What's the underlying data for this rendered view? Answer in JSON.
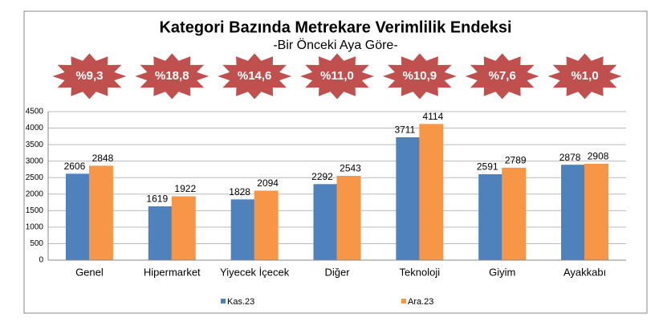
{
  "chart_data": {
    "type": "bar",
    "title": "Kategori Bazında Metrekare Verimlilik Endeksi",
    "subtitle": "-Bir Önceki Aya Göre-",
    "change_labels": [
      "%9,3",
      "%18,8",
      "%14,6",
      "%11,0",
      "%10,9",
      "%7,6",
      "%1,0"
    ],
    "categories": [
      "Genel",
      "Hipermarket",
      "Yiyecek İçecek",
      "Diğer",
      "Teknoloji",
      "Giyim",
      "Ayakkabı"
    ],
    "series": [
      {
        "name": "Kas.23",
        "color": "#4f81bd",
        "values": [
          2606,
          1619,
          1828,
          2292,
          3711,
          2591,
          2878
        ]
      },
      {
        "name": "Ara.23",
        "color": "#f79646",
        "values": [
          2848,
          1922,
          2094,
          2543,
          4114,
          2789,
          2908
        ]
      }
    ],
    "ylim": [
      0,
      4500
    ],
    "yticks": [
      0,
      500,
      1000,
      1500,
      2000,
      2500,
      3000,
      3500,
      4000,
      4500
    ],
    "grid": true,
    "legend": "bottom",
    "badge_color": "#c0504d"
  }
}
